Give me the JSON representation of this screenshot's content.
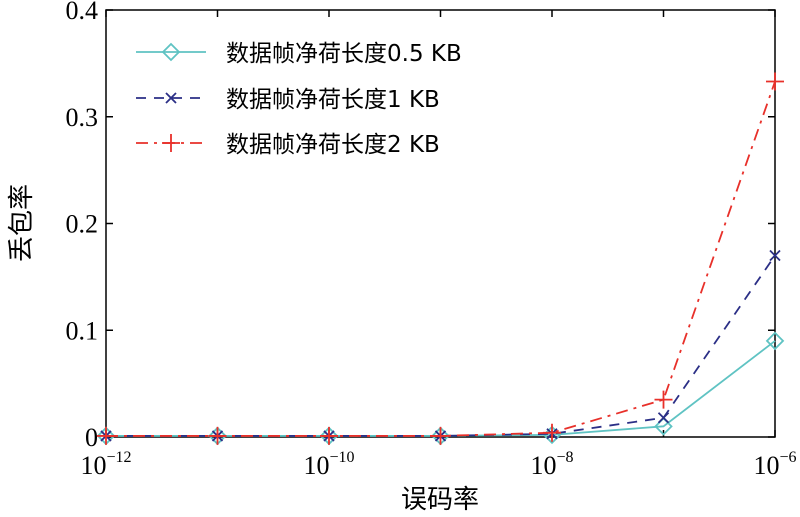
{
  "chart_data": {
    "type": "line",
    "xlabel": "误码率",
    "ylabel": "丢包率",
    "x_scale": "log",
    "x": [
      1e-12,
      1e-11,
      1e-10,
      1e-09,
      1e-08,
      1e-07,
      1e-06
    ],
    "xlim": [
      1e-12,
      1e-06
    ],
    "ylim": [
      0,
      0.4
    ],
    "x_ticks": [
      {
        "base": "10",
        "exp": "−12",
        "value": 1e-12
      },
      {
        "base": "10",
        "exp": "−10",
        "value": 1e-10
      },
      {
        "base": "10",
        "exp": "−8",
        "value": 1e-08
      },
      {
        "base": "10",
        "exp": "−6",
        "value": 1e-06
      }
    ],
    "y_ticks": [
      {
        "label": "0",
        "value": 0
      },
      {
        "label": "0.1",
        "value": 0.1
      },
      {
        "label": "0.2",
        "value": 0.2
      },
      {
        "label": "0.3",
        "value": 0.3
      },
      {
        "label": "0.4",
        "value": 0.4
      }
    ],
    "legend_position": "top-left",
    "series": [
      {
        "name": "数据帧净荷长度0.5 KB",
        "values": [
          0.001,
          0.001,
          0.001,
          0.001,
          0.002,
          0.01,
          0.09
        ],
        "color": "#5fc3c3",
        "marker": "diamond",
        "dash": "solid"
      },
      {
        "name": "数据帧净荷长度1 KB",
        "values": [
          0.001,
          0.001,
          0.001,
          0.001,
          0.003,
          0.018,
          0.17
        ],
        "color": "#2b2f86",
        "marker": "x",
        "dash": "dashed"
      },
      {
        "name": "数据帧净荷长度2 KB",
        "values": [
          0.001,
          0.001,
          0.001,
          0.001,
          0.004,
          0.035,
          0.333
        ],
        "color": "#e8302a",
        "marker": "plus",
        "dash": "dashdot"
      }
    ]
  }
}
